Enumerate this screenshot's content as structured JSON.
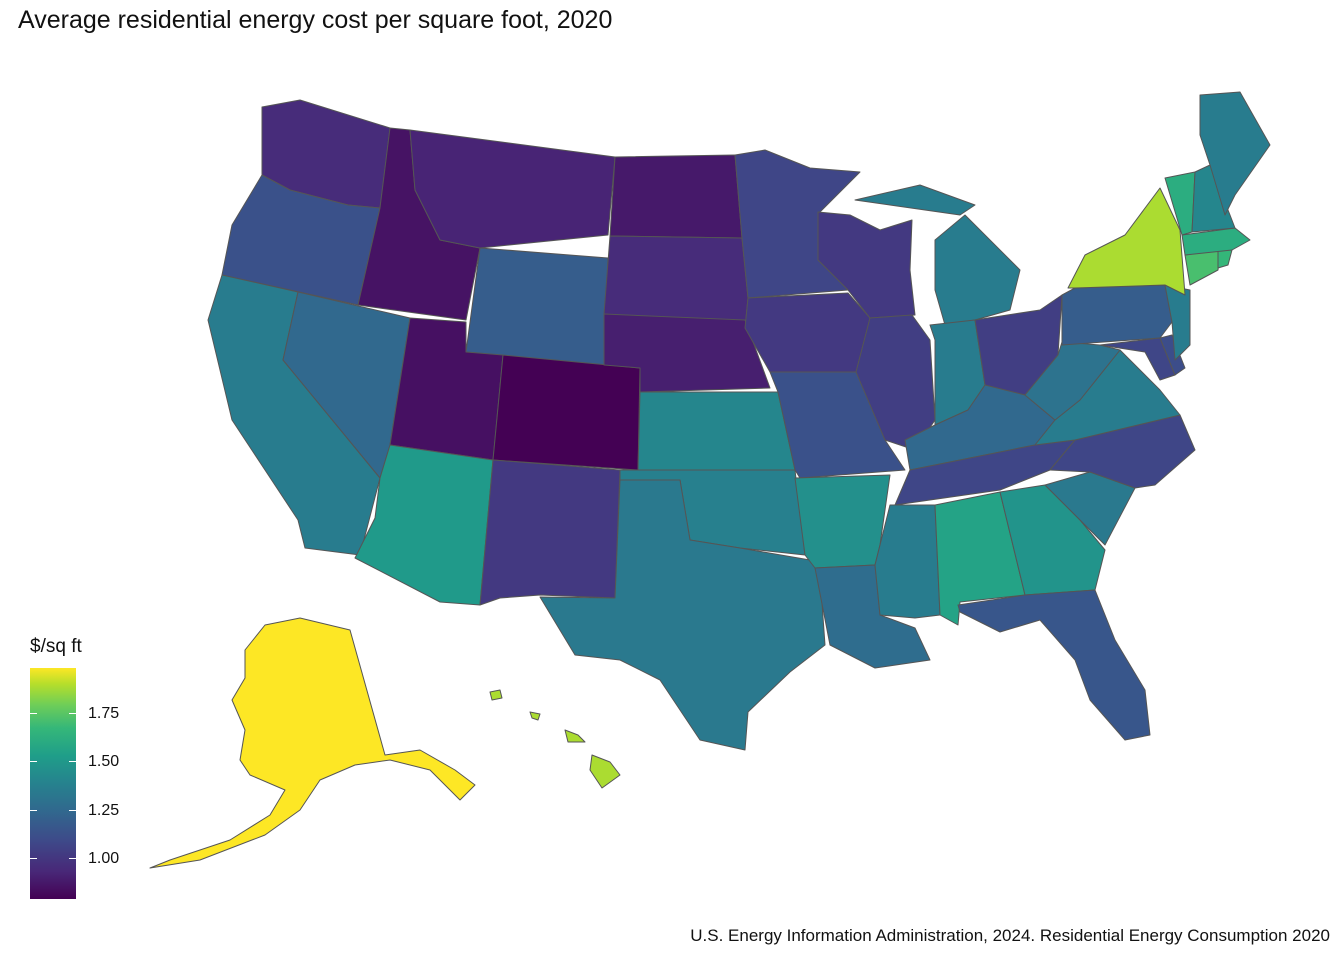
{
  "title": "Average residential energy cost per square foot, 2020",
  "caption": "U.S. Energy Information Administration, 2024. Residential Energy Consumption 2020",
  "legend": {
    "title": "$/sq ft",
    "ticks": [
      "1.00",
      "1.25",
      "1.50",
      "1.75"
    ]
  },
  "map_data": {
    "type": "choropleth",
    "color_scale": "viridis",
    "range": [
      0.8,
      2.0
    ],
    "states": {
      "WA": 0.95,
      "OR": 1.1,
      "CA": 1.3,
      "NV": 1.2,
      "ID": 0.86,
      "MT": 0.92,
      "WY": 1.15,
      "UT": 0.85,
      "AZ": 1.45,
      "CO": 0.8,
      "NM": 1.0,
      "ND": 0.88,
      "SD": 0.95,
      "NE": 0.9,
      "KS": 1.35,
      "OK": 1.32,
      "TX": 1.28,
      "MN": 1.05,
      "IA": 1.0,
      "MO": 1.1,
      "AR": 1.4,
      "LA": 1.22,
      "WI": 1.0,
      "IL": 1.02,
      "MS": 1.3,
      "MI": 1.3,
      "IN": 1.3,
      "KY": 1.2,
      "TN": 1.05,
      "AL": 1.5,
      "OH": 1.02,
      "GA": 1.42,
      "FL": 1.12,
      "SC": 1.28,
      "NC": 1.05,
      "VA": 1.3,
      "WV": 1.25,
      "PA": 1.15,
      "NY": 1.85,
      "VT": 1.55,
      "NH": 1.35,
      "ME": 1.3,
      "MA": 1.55,
      "CT": 1.65,
      "RI": 1.6,
      "NJ": 1.3,
      "DE": 1.08,
      "MD": 1.05,
      "AK": 2.0,
      "HI": 1.85
    }
  },
  "colors": {
    "scale_low": "#440154",
    "scale_high": "#fde725"
  }
}
